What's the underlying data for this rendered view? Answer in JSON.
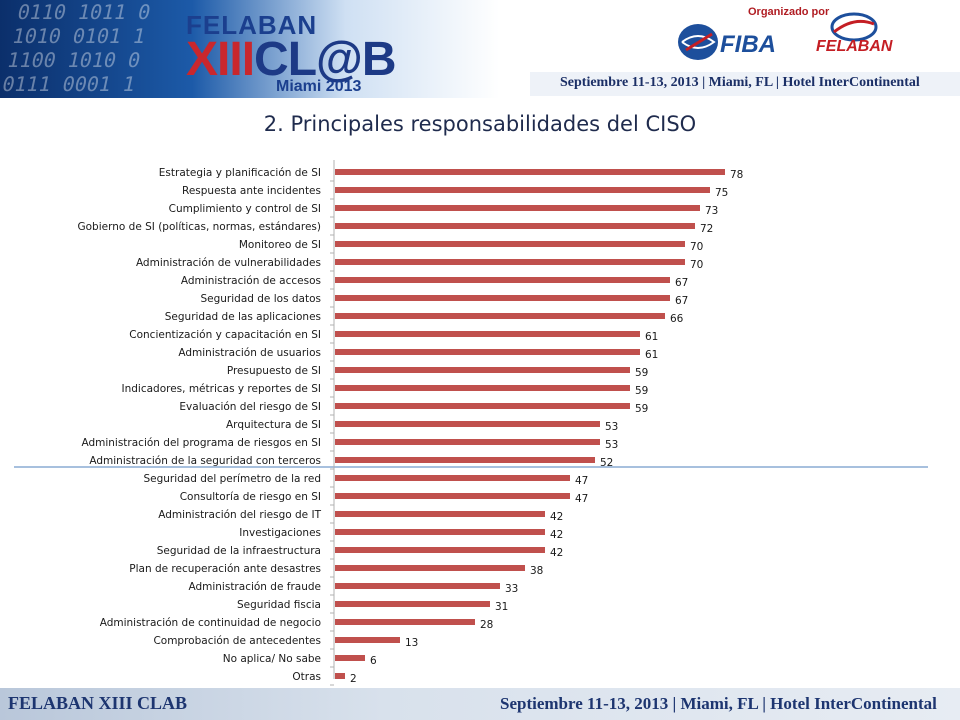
{
  "header": {
    "event_line1": "FELABAN",
    "event_line2_a": "XIII",
    "event_line2_b": "CL",
    "event_line2_c": "@",
    "event_line2_d": "B",
    "event_line3": "Miami 2013",
    "organized_by": "Organizado por",
    "org1": "FIBA",
    "org2": "FELABAN",
    "info_strip": "Septiembre 11-13, 2013  |  Miami, FL  |  Hotel InterContinental"
  },
  "slide": {
    "title": "2. Principales responsabilidades del CISO"
  },
  "chart_data": {
    "type": "bar",
    "orientation": "horizontal",
    "categories": [
      "Estrategia y planificación de SI",
      "Respuesta ante incidentes",
      "Cumplimiento y control de SI",
      "Gobierno de SI (políticas, normas, estándares)",
      "Monitoreo de SI",
      "Administración de vulnerabilidades",
      "Administración de accesos",
      "Seguridad de los datos",
      "Seguridad de las aplicaciones",
      "Concientización y capacitación en SI",
      "Administración de usuarios",
      "Presupuesto de SI",
      "Indicadores, métricas y reportes de SI",
      "Evaluación del riesgo de SI",
      "Arquitectura de SI",
      "Administración del programa de riesgos en SI",
      "Administración de la seguridad con terceros",
      "Seguridad del perímetro de la red",
      "Consultoría de riesgo en SI",
      "Administración del riesgo de IT",
      "Investigaciones",
      "Seguridad de la infraestructura",
      "Plan de recuperación ante desastres",
      "Administración de fraude",
      "Seguridad fiscia",
      "Administración de continuidad de negocio",
      "Comprobación de antecedentes",
      "No aplica/ No sabe",
      "Otras"
    ],
    "values": [
      78,
      75,
      73,
      72,
      70,
      70,
      67,
      67,
      66,
      61,
      61,
      59,
      59,
      59,
      53,
      53,
      52,
      47,
      47,
      42,
      42,
      42,
      38,
      33,
      31,
      28,
      13,
      6,
      2
    ],
    "xlim": [
      0,
      100
    ],
    "bar_color": "#c0504d",
    "divider_color": "#4f81bd",
    "data_labels": true,
    "grid": false,
    "title": "",
    "xlabel": "",
    "ylabel": ""
  },
  "footer": {
    "left": "FELABAN XIII CLAB",
    "right": "Septiembre 11-13, 2013 | Miami, FL | Hotel InterContinental"
  }
}
